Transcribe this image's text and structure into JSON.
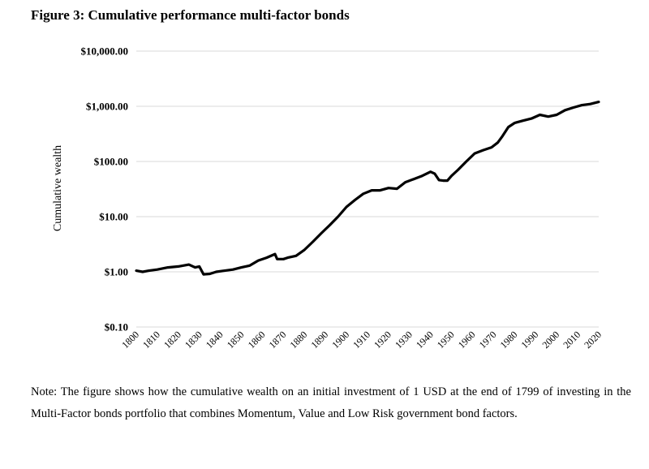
{
  "figure_title": "Figure 3: Cumulative performance multi-factor bonds",
  "note": "Note: The figure shows how the cumulative wealth on an initial investment of 1 USD at the end of 1799 of investing in the Multi-Factor bonds portfolio that combines Momentum, Value and Low Risk government bond factors.",
  "chart_data": {
    "type": "line",
    "title": "Figure 3: Cumulative performance multi-factor bonds",
    "xlabel": "",
    "ylabel": "Cumulative wealth",
    "y_scale": "log",
    "ylim": [
      0.1,
      10000
    ],
    "xlim": [
      1800,
      2020
    ],
    "grid": "horizontal",
    "legend": "none",
    "line_color": "#000000",
    "y_ticks": [
      {
        "value": 10000,
        "label": "$10,000.00"
      },
      {
        "value": 1000,
        "label": "$1,000.00"
      },
      {
        "value": 100,
        "label": "$100.00"
      },
      {
        "value": 10,
        "label": "$10.00"
      },
      {
        "value": 1,
        "label": "$1.00"
      },
      {
        "value": 0.1,
        "label": "$0.10"
      }
    ],
    "x_ticks": [
      {
        "value": 1800,
        "label": "1800"
      },
      {
        "value": 1810,
        "label": "1810"
      },
      {
        "value": 1820,
        "label": "1820"
      },
      {
        "value": 1830,
        "label": "1830"
      },
      {
        "value": 1840,
        "label": "1840"
      },
      {
        "value": 1850,
        "label": "1850"
      },
      {
        "value": 1860,
        "label": "1860"
      },
      {
        "value": 1870,
        "label": "1870"
      },
      {
        "value": 1880,
        "label": "1880"
      },
      {
        "value": 1890,
        "label": "1890"
      },
      {
        "value": 1900,
        "label": "1900"
      },
      {
        "value": 1910,
        "label": "1910"
      },
      {
        "value": 1920,
        "label": "1920"
      },
      {
        "value": 1930,
        "label": "1930"
      },
      {
        "value": 1940,
        "label": "1940"
      },
      {
        "value": 1950,
        "label": "1950"
      },
      {
        "value": 1960,
        "label": "1960"
      },
      {
        "value": 1970,
        "label": "1970"
      },
      {
        "value": 1980,
        "label": "1980"
      },
      {
        "value": 1990,
        "label": "1990"
      },
      {
        "value": 2000,
        "label": "2000"
      },
      {
        "value": 2010,
        "label": "2010"
      },
      {
        "value": 2020,
        "label": "2020"
      }
    ],
    "series": [
      {
        "x": [
          1800,
          1803,
          1806,
          1810,
          1815,
          1820,
          1825,
          1828,
          1830,
          1832,
          1835,
          1838,
          1842,
          1846,
          1850,
          1854,
          1858,
          1862,
          1866,
          1867,
          1870,
          1872,
          1876,
          1880,
          1884,
          1888,
          1892,
          1896,
          1900,
          1904,
          1908,
          1912,
          1916,
          1920,
          1924,
          1928,
          1932,
          1936,
          1940,
          1942,
          1944,
          1946,
          1948,
          1950,
          1953,
          1957,
          1961,
          1965,
          1969,
          1972,
          1974,
          1977,
          1980,
          1984,
          1988,
          1992,
          1996,
          2000,
          2004,
          2008,
          2012,
          2016,
          2020
        ],
        "y": [
          1.05,
          1.0,
          1.05,
          1.1,
          1.2,
          1.25,
          1.35,
          1.2,
          1.25,
          0.9,
          0.92,
          1.0,
          1.05,
          1.1,
          1.2,
          1.3,
          1.6,
          1.8,
          2.1,
          1.7,
          1.7,
          1.8,
          1.95,
          2.5,
          3.5,
          5.0,
          7.0,
          10.0,
          15.0,
          20.0,
          26.0,
          30.0,
          30.0,
          33.0,
          32.0,
          42.0,
          48.0,
          55.0,
          65.0,
          60.0,
          46.0,
          45.0,
          45.0,
          55.0,
          70.0,
          100.0,
          140.0,
          160.0,
          180.0,
          220.0,
          280.0,
          420.0,
          500.0,
          550.0,
          600.0,
          700.0,
          650.0,
          700.0,
          850.0,
          950.0,
          1050.0,
          1100.0,
          1200.0
        ]
      }
    ]
  }
}
